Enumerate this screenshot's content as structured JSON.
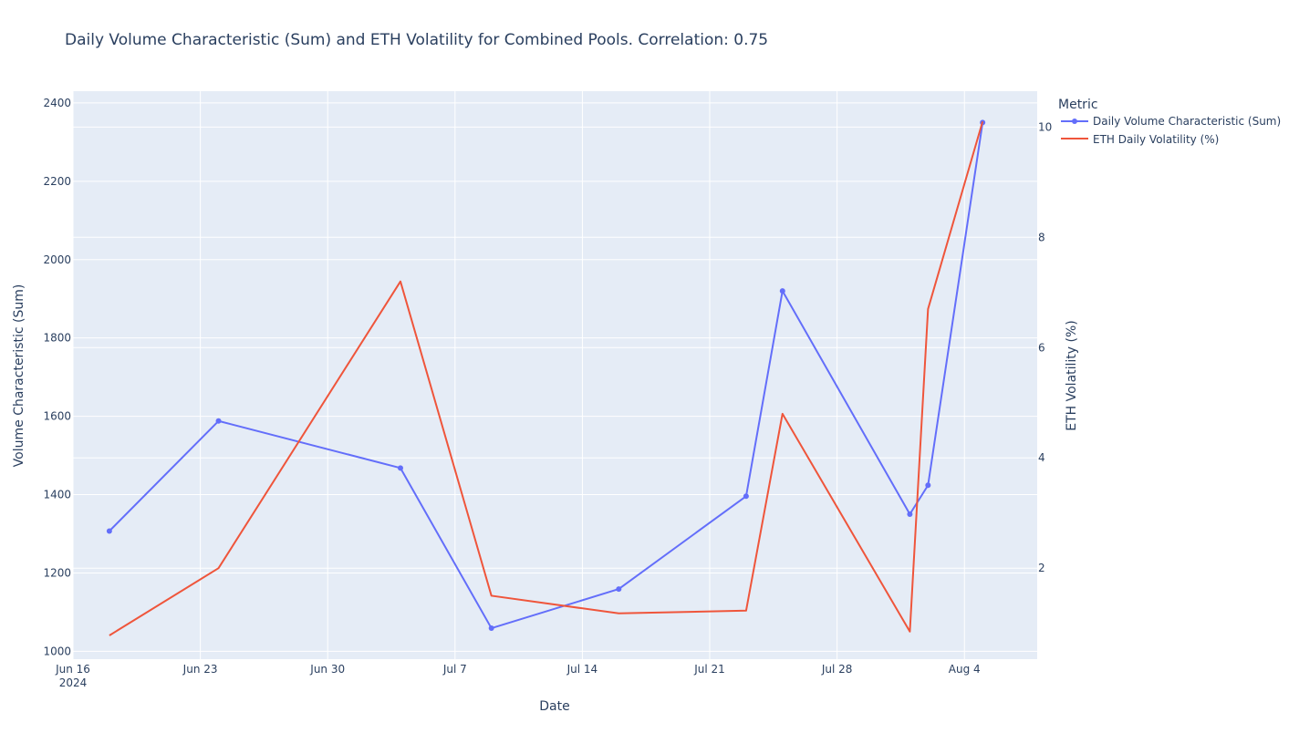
{
  "chart_data": {
    "type": "line",
    "title": "Daily Volume Characteristic (Sum) and ETH Volatility for Combined Pools. Correlation: 0.75",
    "xlabel": "Date",
    "ylabel": "Volume Characteristic (Sum)",
    "y2label": "ETH Volatility (%)",
    "x_ticks": [
      {
        "date": "2024-06-16",
        "label": "Jun 16",
        "sublabel": "2024"
      },
      {
        "date": "2024-06-23",
        "label": "Jun 23",
        "sublabel": ""
      },
      {
        "date": "2024-06-30",
        "label": "Jun 30",
        "sublabel": ""
      },
      {
        "date": "2024-07-07",
        "label": "Jul 7",
        "sublabel": ""
      },
      {
        "date": "2024-07-14",
        "label": "Jul 14",
        "sublabel": ""
      },
      {
        "date": "2024-07-21",
        "label": "Jul 21",
        "sublabel": ""
      },
      {
        "date": "2024-07-28",
        "label": "Jul 28",
        "sublabel": ""
      },
      {
        "date": "2024-08-04",
        "label": "Aug 4",
        "sublabel": ""
      }
    ],
    "xlim": [
      "2024-06-16",
      "2024-08-08"
    ],
    "ylim": [
      980,
      2430
    ],
    "y_ticks": [
      1000,
      1200,
      1400,
      1600,
      1800,
      2000,
      2200,
      2400
    ],
    "y2lim": [
      0.35,
      10.65
    ],
    "y2_ticks": [
      2,
      4,
      6,
      8,
      10
    ],
    "grid": true,
    "legend": {
      "title": "Metric",
      "placement": "top-right outside"
    },
    "series": [
      {
        "name": "Daily Volume Characteristic (Sum)",
        "axis": "y",
        "color": "#636efa",
        "markers": true,
        "points": [
          {
            "x": "2024-06-18",
            "y": 1307
          },
          {
            "x": "2024-06-24",
            "y": 1588
          },
          {
            "x": "2024-07-04",
            "y": 1468
          },
          {
            "x": "2024-07-09",
            "y": 1059
          },
          {
            "x": "2024-07-16",
            "y": 1159
          },
          {
            "x": "2024-07-23",
            "y": 1396
          },
          {
            "x": "2024-07-25",
            "y": 1920
          },
          {
            "x": "2024-08-01",
            "y": 1350
          },
          {
            "x": "2024-08-02",
            "y": 1424
          },
          {
            "x": "2024-08-05",
            "y": 2350
          }
        ]
      },
      {
        "name": "ETH Daily Volatility (%)",
        "axis": "y2",
        "color": "#ef553b",
        "markers": false,
        "points": [
          {
            "x": "2024-06-18",
            "y": 0.78
          },
          {
            "x": "2024-06-24",
            "y": 2.0
          },
          {
            "x": "2024-07-04",
            "y": 7.2
          },
          {
            "x": "2024-07-09",
            "y": 1.5
          },
          {
            "x": "2024-07-16",
            "y": 1.18
          },
          {
            "x": "2024-07-23",
            "y": 1.23
          },
          {
            "x": "2024-07-25",
            "y": 4.8
          },
          {
            "x": "2024-08-01",
            "y": 0.85
          },
          {
            "x": "2024-08-02",
            "y": 6.7
          },
          {
            "x": "2024-08-05",
            "y": 10.1
          }
        ]
      }
    ]
  }
}
